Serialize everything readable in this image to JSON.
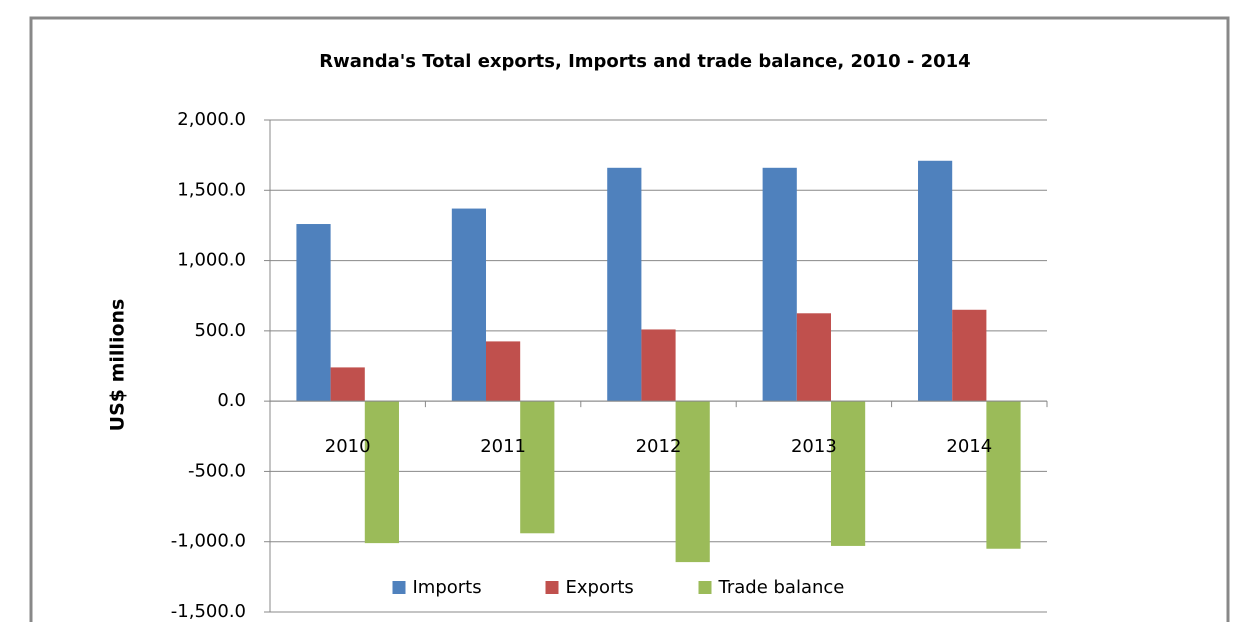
{
  "chart_data": {
    "type": "bar",
    "title": "Rwanda's Total exports, Imports and trade balance, 2010 - 2014",
    "y_label": "US$ millions",
    "categories": [
      "2010",
      "2011",
      "2012",
      "2013",
      "2014"
    ],
    "series": [
      {
        "name": "Imports",
        "color": "#4f81bd",
        "values": [
          1260,
          1370,
          1660,
          1660,
          1710
        ]
      },
      {
        "name": "Exports",
        "color": "#c0504d",
        "values": [
          240,
          425,
          510,
          625,
          650
        ]
      },
      {
        "name": "Trade balance",
        "color": "#9bbb59",
        "values": [
          -1010,
          -940,
          -1145,
          -1030,
          -1050
        ]
      }
    ],
    "ylim": [
      -1500,
      2000
    ],
    "yticks": [
      {
        "value": -1500,
        "label": "-1,500.0"
      },
      {
        "value": -1000,
        "label": "-1,000.0"
      },
      {
        "value": -500,
        "label": "-500.0"
      },
      {
        "value": 0,
        "label": "0.0"
      },
      {
        "value": 500,
        "label": "500.0"
      },
      {
        "value": 1000,
        "label": "1,000.0"
      },
      {
        "value": 1500,
        "label": "1,500.0"
      },
      {
        "value": 2000,
        "label": "2,000.0"
      }
    ],
    "grid": true,
    "legend": "bottom"
  }
}
